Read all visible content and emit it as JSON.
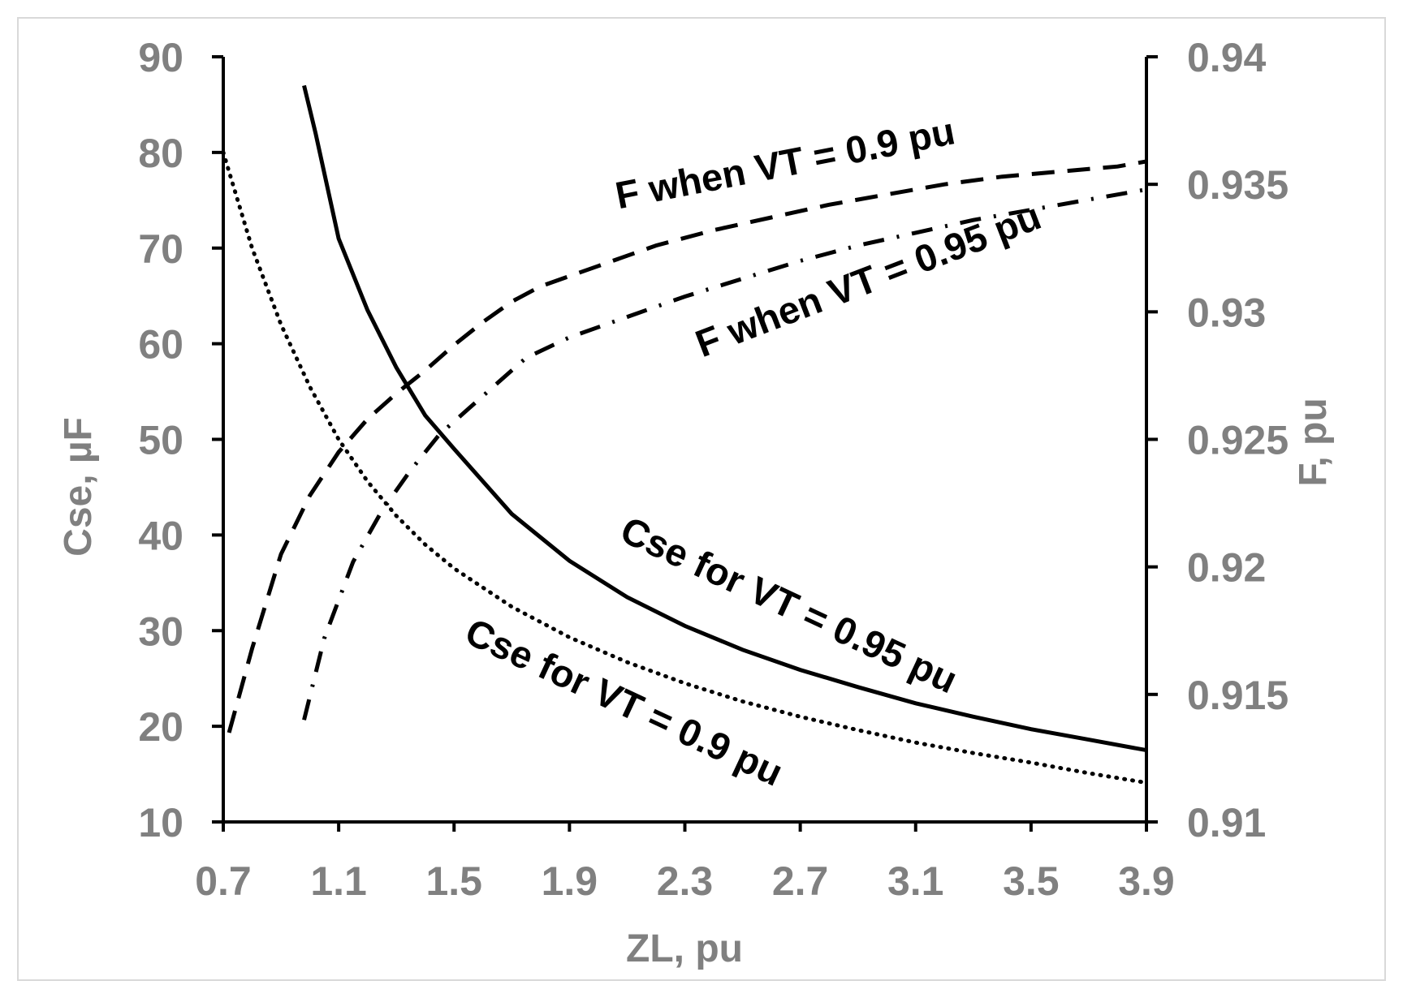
{
  "chart_data": {
    "type": "line",
    "title": "",
    "xlabel": "ZL, pu",
    "ylabel_left": "Cse, µF",
    "ylabel_right": "F, pu",
    "xlim": [
      0.7,
      3.9
    ],
    "ylim_left": [
      10,
      90
    ],
    "ylim_right": [
      0.91,
      0.94
    ],
    "x_ticks": [
      "0.7",
      "1.1",
      "1.5",
      "1.9",
      "2.3",
      "2.7",
      "3.1",
      "3.5",
      "3.9"
    ],
    "y_left_ticks": [
      "10",
      "20",
      "30",
      "40",
      "50",
      "60",
      "70",
      "80",
      "90"
    ],
    "y_right_ticks": [
      "0.91",
      "0.915",
      "0.92",
      "0.925",
      "0.93",
      "0.935",
      "0.94"
    ],
    "grid": false,
    "legend": "none",
    "series": [
      {
        "name": "Cse for VT = 0.95 pu",
        "axis": "left",
        "style": "solid",
        "x": [
          0.98,
          1.02,
          1.1,
          1.2,
          1.3,
          1.4,
          1.5,
          1.7,
          1.9,
          2.1,
          2.3,
          2.5,
          2.7,
          2.9,
          3.1,
          3.3,
          3.5,
          3.7,
          3.9
        ],
        "y": [
          87,
          82,
          71,
          63.5,
          57.5,
          52.5,
          49,
          42.2,
          37.3,
          33.5,
          30.5,
          28,
          25.9,
          24.1,
          22.4,
          21,
          19.7,
          18.6,
          17.5
        ]
      },
      {
        "name": "Cse for VT = 0.9 pu",
        "axis": "left",
        "style": "dotted",
        "x": [
          0.7,
          0.8,
          0.9,
          1.0,
          1.1,
          1.2,
          1.3,
          1.4,
          1.5,
          1.7,
          1.9,
          2.1,
          2.3,
          2.5,
          2.7,
          2.9,
          3.1,
          3.3,
          3.5,
          3.7,
          3.9
        ],
        "y": [
          80,
          70,
          62,
          55.5,
          50,
          45.6,
          42,
          39,
          36.5,
          32.5,
          29.3,
          26.7,
          24.5,
          22.6,
          21,
          19.6,
          18.3,
          17.2,
          16.2,
          15.1,
          14.1
        ]
      },
      {
        "name": "F when VT = 0.9 pu",
        "axis": "right",
        "style": "dashed",
        "x": [
          0.72,
          0.8,
          0.9,
          1.0,
          1.1,
          1.2,
          1.3,
          1.4,
          1.5,
          1.6,
          1.7,
          1.8,
          2.0,
          2.2,
          2.4,
          2.6,
          2.8,
          3.0,
          3.2,
          3.4,
          3.6,
          3.8,
          3.9
        ],
        "y": [
          0.9135,
          0.9168,
          0.9205,
          0.9228,
          0.9245,
          0.9258,
          0.9268,
          0.9277,
          0.9287,
          0.9296,
          0.9304,
          0.931,
          0.9318,
          0.9326,
          0.9332,
          0.9337,
          0.9342,
          0.9346,
          0.935,
          0.9353,
          0.9355,
          0.9357,
          0.9359
        ]
      },
      {
        "name": "F when VT = 0.95 pu",
        "axis": "right",
        "style": "dashdot",
        "x": [
          0.98,
          1.05,
          1.15,
          1.25,
          1.35,
          1.45,
          1.55,
          1.65,
          1.75,
          1.9,
          2.1,
          2.3,
          2.5,
          2.7,
          2.9,
          3.1,
          3.3,
          3.5,
          3.7,
          3.9
        ],
        "y": [
          0.914,
          0.9172,
          0.9202,
          0.9222,
          0.9238,
          0.9252,
          0.9262,
          0.9272,
          0.9282,
          0.929,
          0.9298,
          0.9306,
          0.9313,
          0.932,
          0.9326,
          0.9331,
          0.9336,
          0.934,
          0.9344,
          0.9348
        ]
      }
    ],
    "annotations": [
      {
        "text": "F when VT = 0.9 pu",
        "series": "F when VT = 0.9 pu"
      },
      {
        "text": "F when VT = 0.95 pu",
        "series": "F when VT = 0.95 pu"
      },
      {
        "text": "Cse for VT = 0.95 pu",
        "series": "Cse for VT = 0.95 pu"
      },
      {
        "text": "Cse for VT = 0.9 pu",
        "series": "Cse for VT = 0.9 pu"
      }
    ]
  }
}
